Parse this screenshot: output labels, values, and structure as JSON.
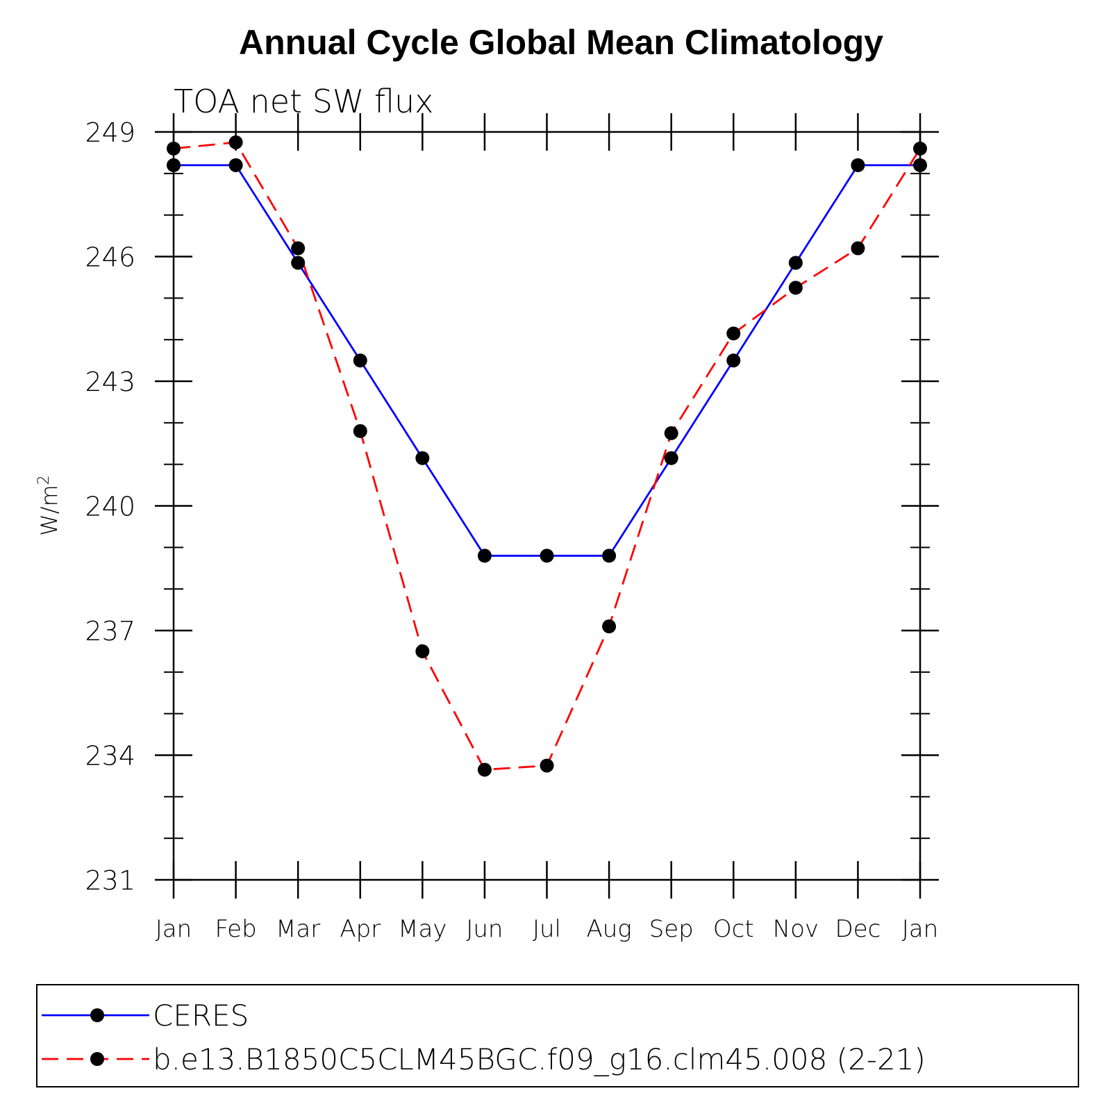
{
  "chart_data": {
    "type": "line",
    "title": "Annual Cycle Global Mean Climatology",
    "subtitle": "TOA net SW flux",
    "xlabel": "",
    "ylabel": "W/m",
    "ylabel_superscript": "2",
    "ylim": [
      231,
      249
    ],
    "yticks": [
      231,
      234,
      237,
      240,
      243,
      246,
      249
    ],
    "categories": [
      "Jan",
      "Feb",
      "Mar",
      "Apr",
      "May",
      "Jun",
      "Jul",
      "Aug",
      "Sep",
      "Oct",
      "Nov",
      "Dec",
      "Jan"
    ],
    "series": [
      {
        "name": "CERES",
        "color": "#0000ff",
        "dash": "solid",
        "values": [
          248.2,
          248.2,
          245.85,
          243.5,
          241.15,
          238.8,
          238.8,
          238.8,
          241.15,
          243.5,
          245.85,
          248.2,
          248.2
        ]
      },
      {
        "name": "b.e13.B1850C5CLM45BGC.f09_g16.clm45.008 (2-21)",
        "color": "#ff0000",
        "dash": "dashed",
        "values": [
          248.6,
          248.75,
          246.2,
          241.8,
          236.5,
          233.65,
          233.75,
          237.1,
          241.75,
          244.15,
          245.25,
          246.2,
          248.6
        ]
      }
    ]
  }
}
